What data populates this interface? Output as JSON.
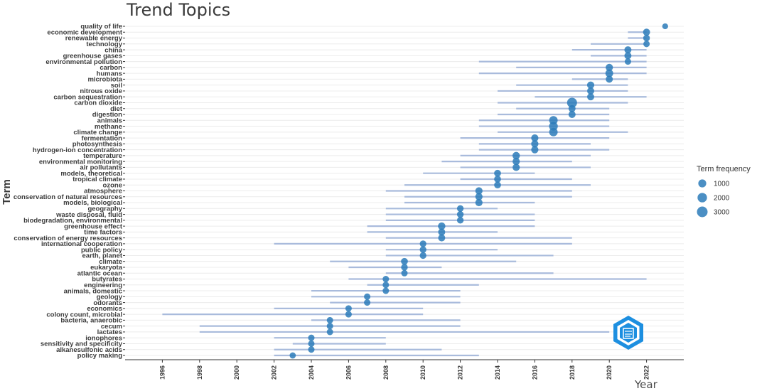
{
  "chart_data": {
    "type": "scatter",
    "title": "Trend Topics",
    "xlabel": "Year",
    "ylabel": "Term",
    "xlim": [
      1994,
      2024
    ],
    "x_ticks": [
      1996,
      1998,
      2000,
      2002,
      2004,
      2006,
      2008,
      2010,
      2012,
      2014,
      2016,
      2018,
      2020,
      2022
    ],
    "grid": true,
    "legend": {
      "title": "Term frequency",
      "position": "right",
      "entries": [
        {
          "label": "1000",
          "value": 1000
        },
        {
          "label": "2000",
          "value": 2000
        },
        {
          "label": "3000",
          "value": 3000
        }
      ]
    },
    "colors": {
      "point": "#2b7bba",
      "range": "#a9bbdc",
      "grid": "#ececec"
    },
    "terms": [
      {
        "term": "quality of life",
        "year": 2023,
        "q1": 2023,
        "q3": 2023,
        "freq": 400
      },
      {
        "term": "economic development",
        "year": 2022,
        "q1": 2021,
        "q3": 2022,
        "freq": 900
      },
      {
        "term": "renewable energy",
        "year": 2022,
        "q1": 2021,
        "q3": 2022,
        "freq": 700
      },
      {
        "term": "technology",
        "year": 2022,
        "q1": 2019,
        "q3": 2022,
        "freq": 600
      },
      {
        "term": "china",
        "year": 2021,
        "q1": 2018,
        "q3": 2022,
        "freq": 900
      },
      {
        "term": "greenhouse gases",
        "year": 2021,
        "q1": 2019,
        "q3": 2022,
        "freq": 900
      },
      {
        "term": "environmental pollution",
        "year": 2021,
        "q1": 2013,
        "q3": 2022,
        "freq": 600
      },
      {
        "term": "carbon",
        "year": 2020,
        "q1": 2015,
        "q3": 2022,
        "freq": 1000
      },
      {
        "term": "humans",
        "year": 2020,
        "q1": 2013,
        "q3": 2022,
        "freq": 1300
      },
      {
        "term": "microbiota",
        "year": 2020,
        "q1": 2018,
        "q3": 2021,
        "freq": 900
      },
      {
        "term": "soil",
        "year": 2019,
        "q1": 2015,
        "q3": 2021,
        "freq": 1000
      },
      {
        "term": "nitrous oxide",
        "year": 2019,
        "q1": 2014,
        "q3": 2021,
        "freq": 900
      },
      {
        "term": "carbon sequestration",
        "year": 2019,
        "q1": 2016,
        "q3": 2022,
        "freq": 900
      },
      {
        "term": "carbon dioxide",
        "year": 2018,
        "q1": 2014,
        "q3": 2021,
        "freq": 3000
      },
      {
        "term": "diet",
        "year": 2018,
        "q1": 2015,
        "q3": 2020,
        "freq": 900
      },
      {
        "term": "digestion",
        "year": 2018,
        "q1": 2014,
        "q3": 2020,
        "freq": 900
      },
      {
        "term": "animals",
        "year": 2017,
        "q1": 2013,
        "q3": 2020,
        "freq": 1800
      },
      {
        "term": "methane",
        "year": 2017,
        "q1": 2013,
        "q3": 2020,
        "freq": 2000
      },
      {
        "term": "climate change",
        "year": 2017,
        "q1": 2014,
        "q3": 2021,
        "freq": 1800
      },
      {
        "term": "fermentation",
        "year": 2016,
        "q1": 2012,
        "q3": 2020,
        "freq": 1000
      },
      {
        "term": "photosynthesis",
        "year": 2016,
        "q1": 2013,
        "q3": 2019,
        "freq": 1000
      },
      {
        "term": "hydrogen-ion concentration",
        "year": 2016,
        "q1": 2013,
        "q3": 2020,
        "freq": 1000
      },
      {
        "term": "temperature",
        "year": 2015,
        "q1": 2012,
        "q3": 2019,
        "freq": 1100
      },
      {
        "term": "environmental monitoring",
        "year": 2015,
        "q1": 2011,
        "q3": 2018,
        "freq": 1000
      },
      {
        "term": "air pollutants",
        "year": 2015,
        "q1": 2012,
        "q3": 2019,
        "freq": 1000
      },
      {
        "term": "models, theoretical",
        "year": 2014,
        "q1": 2010,
        "q3": 2016,
        "freq": 800
      },
      {
        "term": "tropical climate",
        "year": 2014,
        "q1": 2012,
        "q3": 2018,
        "freq": 800
      },
      {
        "term": "ozone",
        "year": 2014,
        "q1": 2009,
        "q3": 2019,
        "freq": 800
      },
      {
        "term": "atmosphere",
        "year": 2013,
        "q1": 2008,
        "q3": 2018,
        "freq": 1000
      },
      {
        "term": "conservation of natural resources",
        "year": 2013,
        "q1": 2009,
        "q3": 2018,
        "freq": 1000
      },
      {
        "term": "models, biological",
        "year": 2013,
        "q1": 2009,
        "q3": 2016,
        "freq": 1000
      },
      {
        "term": "geography",
        "year": 2012,
        "q1": 2008,
        "q3": 2014,
        "freq": 700
      },
      {
        "term": "waste disposal, fluid",
        "year": 2012,
        "q1": 2008,
        "q3": 2016,
        "freq": 700
      },
      {
        "term": "biodegradation, environmental",
        "year": 2012,
        "q1": 2008,
        "q3": 2016,
        "freq": 700
      },
      {
        "term": "greenhouse effect",
        "year": 2011,
        "q1": 2007,
        "q3": 2016,
        "freq": 1100
      },
      {
        "term": "time factors",
        "year": 2011,
        "q1": 2007,
        "q3": 2014,
        "freq": 900
      },
      {
        "term": "conservation of energy resources",
        "year": 2011,
        "q1": 2008,
        "q3": 2018,
        "freq": 900
      },
      {
        "term": "international cooperation",
        "year": 2010,
        "q1": 2002,
        "q3": 2018,
        "freq": 700
      },
      {
        "term": "public policy",
        "year": 2010,
        "q1": 2008,
        "q3": 2014,
        "freq": 700
      },
      {
        "term": "earth, planet",
        "year": 2010,
        "q1": 2008,
        "q3": 2017,
        "freq": 700
      },
      {
        "term": "climate",
        "year": 2009,
        "q1": 2005,
        "q3": 2015,
        "freq": 800
      },
      {
        "term": "eukaryota",
        "year": 2009,
        "q1": 2006,
        "q3": 2011,
        "freq": 700
      },
      {
        "term": "atlantic ocean",
        "year": 2009,
        "q1": 2008,
        "q3": 2017,
        "freq": 600
      },
      {
        "term": "butyrates",
        "year": 2008,
        "q1": 2006,
        "q3": 2022,
        "freq": 600
      },
      {
        "term": "engineering",
        "year": 2008,
        "q1": 2007,
        "q3": 2013,
        "freq": 600
      },
      {
        "term": "animals, domestic",
        "year": 2008,
        "q1": 2004,
        "q3": 2012,
        "freq": 600
      },
      {
        "term": "geology",
        "year": 2007,
        "q1": 2004,
        "q3": 2012,
        "freq": 600
      },
      {
        "term": "odorants",
        "year": 2007,
        "q1": 2005,
        "q3": 2012,
        "freq": 600
      },
      {
        "term": "economics",
        "year": 2006,
        "q1": 2002,
        "q3": 2010,
        "freq": 600
      },
      {
        "term": "colony count, microbial",
        "year": 2006,
        "q1": 1996,
        "q3": 2010,
        "freq": 600
      },
      {
        "term": "bacteria, anaerobic",
        "year": 2005,
        "q1": 2004,
        "q3": 2012,
        "freq": 600
      },
      {
        "term": "cecum",
        "year": 2005,
        "q1": 1998,
        "q3": 2012,
        "freq": 600
      },
      {
        "term": "lactates",
        "year": 2005,
        "q1": 1998,
        "q3": 2020,
        "freq": 600
      },
      {
        "term": "ionophores",
        "year": 2004,
        "q1": 2002,
        "q3": 2008,
        "freq": 600
      },
      {
        "term": "sensitivity and specificity",
        "year": 2004,
        "q1": 2003,
        "q3": 2008,
        "freq": 600
      },
      {
        "term": "alkanesulfonic acids",
        "year": 2004,
        "q1": 2002,
        "q3": 2011,
        "freq": 600
      },
      {
        "term": "policy making",
        "year": 2003,
        "q1": 2002,
        "q3": 2013,
        "freq": 500
      }
    ]
  }
}
